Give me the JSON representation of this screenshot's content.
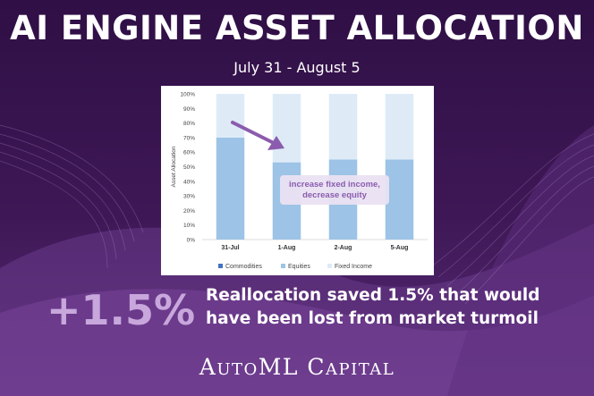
{
  "header": {
    "title": "AI ENGINE ASSET ALLOCATION",
    "subtitle": "July 31 - August 5"
  },
  "chart_data": {
    "type": "bar",
    "stacked": true,
    "ylabel": "Asset Allocation",
    "ylim": [
      0,
      100
    ],
    "yticks": [
      "0%",
      "10%",
      "20%",
      "30%",
      "40%",
      "50%",
      "60%",
      "70%",
      "80%",
      "90%",
      "100%"
    ],
    "categories": [
      "31-Jul",
      "1-Aug",
      "2-Aug",
      "5-Aug"
    ],
    "series": [
      {
        "name": "Commodities",
        "values": [
          0,
          0,
          0,
          0
        ],
        "color": "#4472c4"
      },
      {
        "name": "Equities",
        "values": [
          70,
          53,
          55,
          55
        ],
        "color": "#9dc3e6"
      },
      {
        "name": "Fixed Income",
        "values": [
          30,
          47,
          45,
          45
        ],
        "color": "#deebf7"
      }
    ],
    "legend_position": "bottom",
    "grid": false,
    "annotation": {
      "lines": [
        "increase fixed income,",
        "decrease equity"
      ],
      "color": "#8b5cae"
    }
  },
  "callout": {
    "value": "+1.5%",
    "text_line1": "Reallocation saved 1.5% that would",
    "text_line2": "have been lost from market turmoil"
  },
  "footer": {
    "brand": "AutoML Capital"
  },
  "colors": {
    "background": "#3a1650",
    "accent": "#c8a7dc"
  }
}
